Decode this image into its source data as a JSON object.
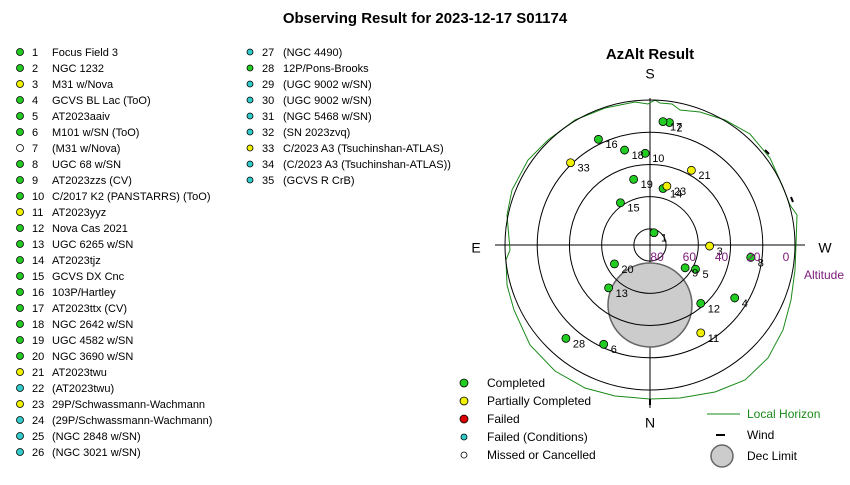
{
  "title": "Observing Result for 2023-12-17 S01174",
  "targets": [
    {
      "number": "1",
      "name": "Focus Field 3",
      "status": "Completed"
    },
    {
      "number": "2",
      "name": "NGC 1232",
      "status": "Completed"
    },
    {
      "number": "3",
      "name": "M31 w/Nova",
      "status": "Partially Completed"
    },
    {
      "number": "4",
      "name": "GCVS BL Lac (ToO)",
      "status": "Completed"
    },
    {
      "number": "5",
      "name": "AT2023aaiv",
      "status": "Completed"
    },
    {
      "number": "6",
      "name": "M101 w/SN (ToO)",
      "status": "Completed"
    },
    {
      "number": "7",
      "name": "(M31 w/Nova)",
      "status": "Missed or Cancelled"
    },
    {
      "number": "8",
      "name": "UGC 68 w/SN",
      "status": "Completed"
    },
    {
      "number": "9",
      "name": "AT2023zzs (CV)",
      "status": "Completed"
    },
    {
      "number": "10",
      "name": "C/2017 K2 (PANSTARRS) (ToO)",
      "status": "Completed"
    },
    {
      "number": "11",
      "name": "AT2023yyz",
      "status": "Partially Completed"
    },
    {
      "number": "12",
      "name": "Nova Cas 2021",
      "status": "Completed"
    },
    {
      "number": "13",
      "name": "UGC 6265 w/SN",
      "status": "Completed"
    },
    {
      "number": "14",
      "name": "AT2023tjz",
      "status": "Completed"
    },
    {
      "number": "15",
      "name": "GCVS DX Cnc",
      "status": "Completed"
    },
    {
      "number": "16",
      "name": "103P/Hartley",
      "status": "Completed"
    },
    {
      "number": "17",
      "name": "AT2023ttx (CV)",
      "status": "Completed"
    },
    {
      "number": "18",
      "name": "NGC 2642 w/SN",
      "status": "Completed"
    },
    {
      "number": "19",
      "name": "UGC 4582 w/SN",
      "status": "Completed"
    },
    {
      "number": "20",
      "name": "NGC 3690 w/SN",
      "status": "Completed"
    },
    {
      "number": "21",
      "name": "AT2023twu",
      "status": "Partially Completed"
    },
    {
      "number": "22",
      "name": "(AT2023twu)",
      "status": "Failed (Conditions)"
    },
    {
      "number": "23",
      "name": "29P/Schwassmann-Wachmann",
      "status": "Partially Completed"
    },
    {
      "number": "24",
      "name": "(29P/Schwassmann-Wachmann)",
      "status": "Failed (Conditions)"
    },
    {
      "number": "25",
      "name": "(NGC 2848 w/SN)",
      "status": "Failed (Conditions)"
    },
    {
      "number": "26",
      "name": "(NGC 3021 w/SN)",
      "status": "Failed (Conditions)"
    },
    {
      "number": "27",
      "name": "(NGC 4490)",
      "status": "Failed (Conditions)"
    },
    {
      "number": "28",
      "name": "12P/Pons-Brooks",
      "status": "Completed"
    },
    {
      "number": "29",
      "name": "(UGC 9002 w/SN)",
      "status": "Failed (Conditions)"
    },
    {
      "number": "30",
      "name": "(UGC 9002 w/SN)",
      "status": "Failed (Conditions)"
    },
    {
      "number": "31",
      "name": "(NGC 5468 w/SN)",
      "status": "Failed (Conditions)"
    },
    {
      "number": "32",
      "name": "(SN 2023zvq)",
      "status": "Failed (Conditions)"
    },
    {
      "number": "33",
      "name": "C/2023 A3 (Tsuchinshan-ATLAS)",
      "status": "Partially Completed"
    },
    {
      "number": "34",
      "name": "(C/2023 A3 (Tsuchinshan-ATLAS))",
      "status": "Failed (Conditions)"
    },
    {
      "number": "35",
      "name": "(GCVS R CrB)",
      "status": "Failed (Conditions)"
    }
  ],
  "chart_data": {
    "type": "polar",
    "title": "AzAlt Result",
    "directions": {
      "south": "S",
      "east": "E",
      "west": "W",
      "north": "N"
    },
    "r_label": "Altitude",
    "rlim": [
      90,
      0
    ],
    "rticks": [
      80,
      60,
      40,
      20,
      0
    ],
    "points": [
      {
        "label": "1",
        "az": 198,
        "alt": 82,
        "status": "Completed"
      },
      {
        "label": "2",
        "az": 189,
        "alt": 13,
        "status": "Completed"
      },
      {
        "label": "3",
        "az": 271,
        "alt": 53,
        "status": "Partially Completed"
      },
      {
        "label": "4",
        "az": 302,
        "alt": 28,
        "status": "Completed"
      },
      {
        "label": "5",
        "az": 298,
        "alt": 58,
        "status": "Completed"
      },
      {
        "label": "6",
        "az": 25,
        "alt": 22,
        "status": "Completed"
      },
      {
        "label": "8",
        "az": 277,
        "alt": 27,
        "status": "Completed"
      },
      {
        "label": "9",
        "az": 303,
        "alt": 64,
        "status": "Completed"
      },
      {
        "label": "10",
        "az": 177,
        "alt": 33,
        "status": "Completed"
      },
      {
        "label": "11",
        "az": 330,
        "alt": 27,
        "status": "Partially Completed"
      },
      {
        "label": "12",
        "az": 319,
        "alt": 42,
        "status": "Completed"
      },
      {
        "label": "13",
        "az": 44,
        "alt": 53,
        "status": "Completed"
      },
      {
        "label": "14",
        "az": 193,
        "alt": 54,
        "status": "Completed"
      },
      {
        "label": "15",
        "az": 145,
        "alt": 58,
        "status": "Completed"
      },
      {
        "label": "16",
        "az": 154,
        "alt": 17,
        "status": "Completed"
      },
      {
        "label": "17",
        "az": 186,
        "alt": 13,
        "status": "Completed"
      },
      {
        "label": "18",
        "az": 165,
        "alt": 29,
        "status": "Completed"
      },
      {
        "label": "19",
        "az": 166,
        "alt": 48,
        "status": "Completed"
      },
      {
        "label": "20",
        "az": 62,
        "alt": 65,
        "status": "Completed"
      },
      {
        "label": "21",
        "az": 209,
        "alt": 37,
        "status": "Partially Completed"
      },
      {
        "label": "23",
        "az": 196,
        "alt": 52,
        "status": "Partially Completed"
      },
      {
        "label": "28",
        "az": 42,
        "alt": 12,
        "status": "Completed"
      },
      {
        "label": "33",
        "az": 136,
        "alt": 19,
        "status": "Partially Completed"
      }
    ],
    "legend": [
      {
        "label": "Completed",
        "color": "#22cc22"
      },
      {
        "label": "Partially Completed",
        "color": "#f0f000"
      },
      {
        "label": "Failed",
        "color": "#dd0000"
      },
      {
        "label": "Failed (Conditions)",
        "color": "#33cccc"
      },
      {
        "label": "Missed or Cancelled",
        "color": "#ffffff"
      }
    ],
    "extra_legend": {
      "horizon": "Local Horizon",
      "wind": "Wind",
      "dec_limit": "Dec Limit"
    }
  }
}
